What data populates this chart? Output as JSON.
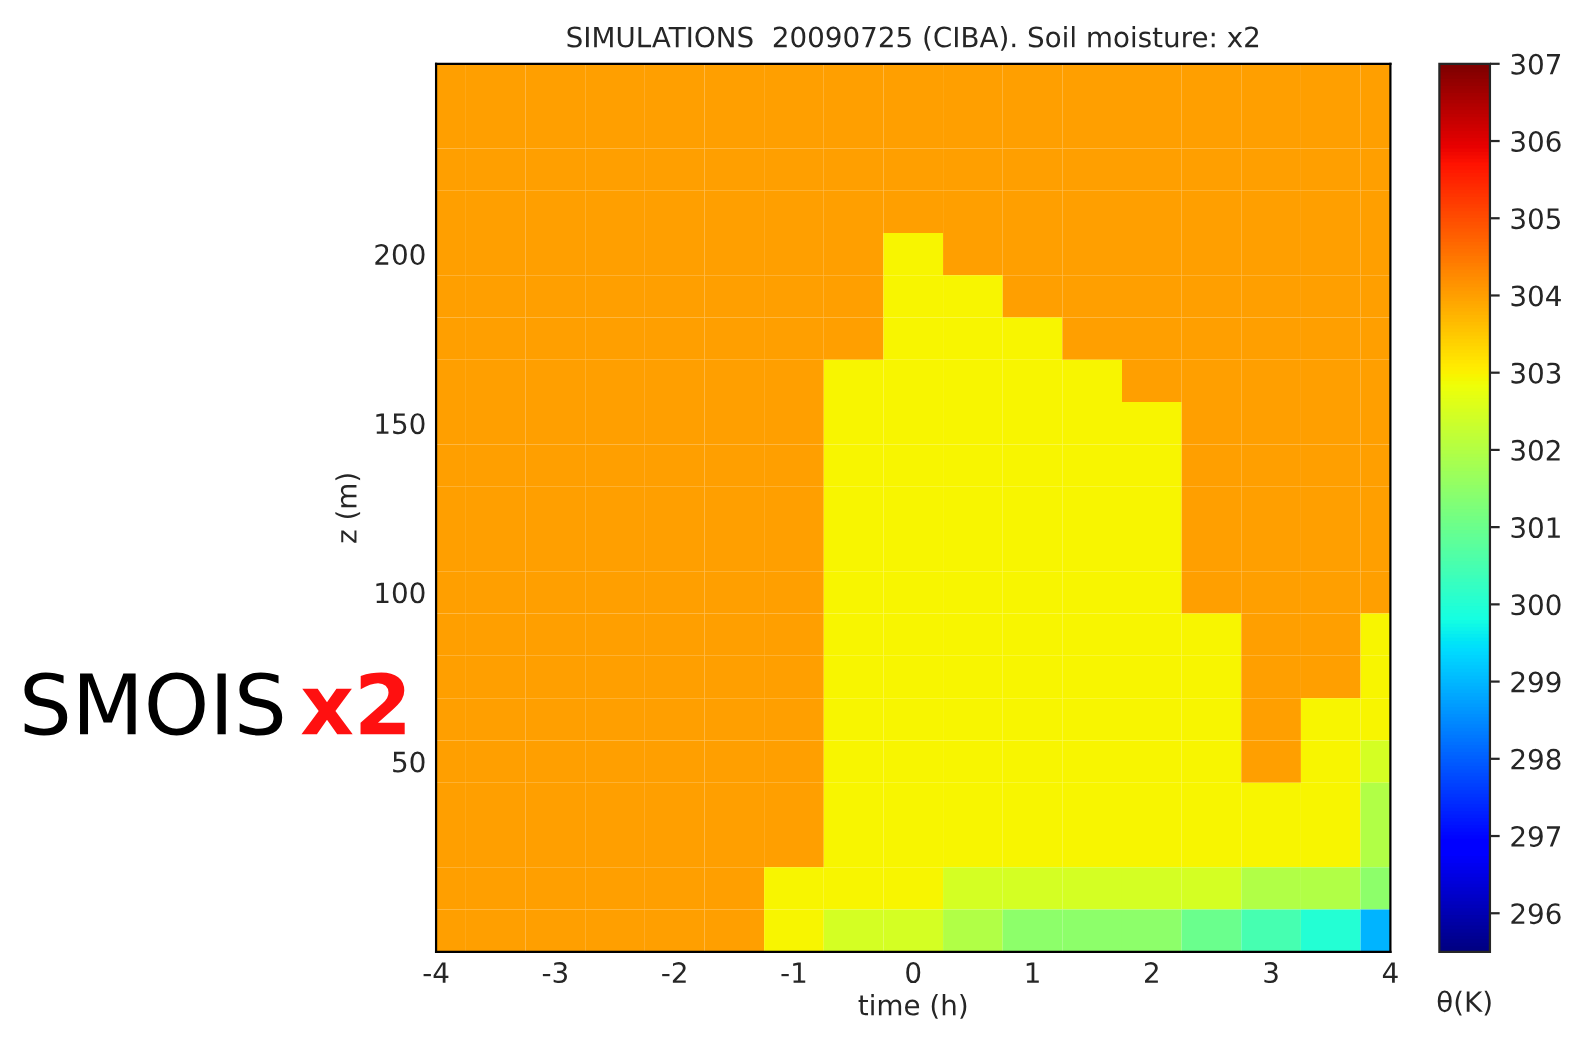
{
  "chart_data": {
    "type": "heatmap",
    "title": "SIMULATIONS  20090725 (CIBA). Soil moisture: x2",
    "xlabel": "time (h)",
    "ylabel": "z (m)",
    "clabel": "θ(K)",
    "annotations": [
      "SMOIS",
      "x2"
    ],
    "x": [
      -4,
      -3.5,
      -3,
      -2.5,
      -2,
      -1.5,
      -1,
      -0.5,
      0,
      0.5,
      1,
      1.5,
      2,
      2.5,
      3,
      3.5,
      4
    ],
    "y_categories": [
      null,
      null,
      null,
      null,
      "200",
      null,
      null,
      null,
      "150",
      null,
      null,
      null,
      "100",
      null,
      null,
      null,
      "50",
      null,
      null,
      null,
      null
    ],
    "cells": [
      [
        304,
        304,
        304,
        304,
        304,
        304,
        304,
        304,
        304,
        304,
        304,
        304,
        304,
        304,
        304,
        304,
        304
      ],
      [
        304,
        304,
        304,
        304,
        304,
        304,
        304,
        304,
        304,
        304,
        304,
        304,
        304,
        304,
        304,
        304,
        304
      ],
      [
        304,
        304,
        304,
        304,
        304,
        304,
        304,
        304,
        304,
        304,
        304,
        304,
        304,
        304,
        304,
        304,
        304
      ],
      [
        304,
        304,
        304,
        304,
        304,
        304,
        304,
        304,
        304,
        304,
        304,
        304,
        304,
        304,
        304,
        304,
        304
      ],
      [
        304,
        304,
        304,
        304,
        304,
        304,
        304,
        304,
        303,
        304,
        304,
        304,
        304,
        304,
        304,
        304,
        304
      ],
      [
        304,
        304,
        304,
        304,
        304,
        304,
        304,
        304,
        303,
        303,
        304,
        304,
        304,
        304,
        304,
        304,
        304
      ],
      [
        304,
        304,
        304,
        304,
        304,
        304,
        304,
        304,
        303,
        303,
        303,
        304,
        304,
        304,
        304,
        304,
        304
      ],
      [
        304,
        304,
        304,
        304,
        304,
        304,
        304,
        303,
        303,
        303,
        303,
        303,
        304,
        304,
        304,
        304,
        304
      ],
      [
        304,
        304,
        304,
        304,
        304,
        304,
        304,
        303,
        303,
        303,
        303,
        303,
        303,
        304,
        304,
        304,
        304
      ],
      [
        304,
        304,
        304,
        304,
        304,
        304,
        304,
        303,
        303,
        303,
        303,
        303,
        303,
        304,
        304,
        304,
        304
      ],
      [
        304,
        304,
        304,
        304,
        304,
        304,
        304,
        303,
        303,
        303,
        303,
        303,
        303,
        304,
        304,
        304,
        304
      ],
      [
        304,
        304,
        304,
        304,
        304,
        304,
        304,
        303,
        303,
        303,
        303,
        303,
        303,
        304,
        304,
        304,
        304
      ],
      [
        304,
        304,
        304,
        304,
        304,
        304,
        304,
        303,
        303,
        303,
        303,
        303,
        303,
        304,
        304,
        304,
        304
      ],
      [
        304,
        304,
        304,
        304,
        304,
        304,
        304,
        303,
        303,
        303,
        303,
        303,
        303,
        303,
        304,
        304,
        303
      ],
      [
        304,
        304,
        304,
        304,
        304,
        304,
        304,
        303,
        303,
        303,
        303,
        303,
        303,
        303,
        304,
        304,
        303
      ],
      [
        304,
        304,
        304,
        304,
        304,
        304,
        304,
        303,
        303,
        303,
        303,
        303,
        303,
        303,
        304,
        303,
        303
      ],
      [
        304,
        304,
        304,
        304,
        304,
        304,
        304,
        303,
        303,
        303,
        303,
        303,
        303,
        303,
        304,
        303,
        302.5
      ],
      [
        304,
        304,
        304,
        304,
        304,
        304,
        304,
        303,
        303,
        303,
        303,
        303,
        303,
        303,
        303,
        303,
        302
      ],
      [
        304,
        304,
        304,
        304,
        304,
        304,
        304,
        303,
        303,
        303,
        303,
        303,
        303,
        303,
        303,
        303,
        302
      ],
      [
        304,
        304,
        304,
        304,
        304,
        304,
        303,
        303,
        303,
        302.5,
        302.5,
        302.5,
        302.5,
        302.5,
        302,
        302,
        301.5
      ],
      [
        304,
        304,
        304,
        304,
        304,
        304,
        303,
        302.5,
        302.5,
        302,
        301.5,
        301.5,
        301.5,
        301,
        300.5,
        300,
        299
      ]
    ],
    "xlim": [
      -4,
      4
    ],
    "xticks": [
      -4,
      -3,
      -2,
      -1,
      0,
      1,
      2,
      3,
      4
    ],
    "clim": [
      295.5,
      307
    ],
    "cticks": [
      296,
      297,
      298,
      299,
      300,
      301,
      302,
      303,
      304,
      305,
      306,
      307
    ],
    "grid": false
  }
}
